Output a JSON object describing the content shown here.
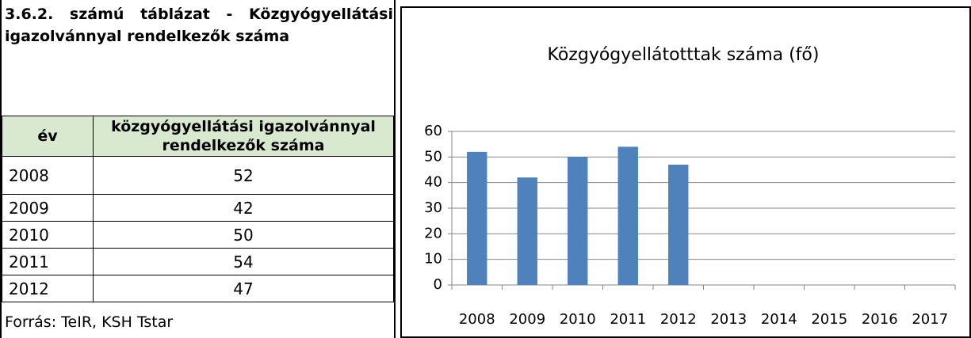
{
  "caption": "3.6.2. számú táblázat - Közgyógyellátási igazolvánnyal rendelkezők száma",
  "table": {
    "header": [
      "év",
      "közgyógyellátási igazolvánnyal rendelkezők száma"
    ],
    "rows": [
      [
        "2008",
        "52"
      ],
      [
        "2009",
        "42"
      ],
      [
        "2010",
        "50"
      ],
      [
        "2011",
        "54"
      ],
      [
        "2012",
        "47"
      ]
    ]
  },
  "source": "Forrás: TeIR, KSH Tstar",
  "chart_data": {
    "type": "bar",
    "title": "Közgyógyellátotttak száma (fő)",
    "categories": [
      "2008",
      "2009",
      "2010",
      "2011",
      "2012",
      "2013",
      "2014",
      "2015",
      "2016",
      "2017"
    ],
    "values": [
      52,
      42,
      50,
      54,
      47,
      null,
      null,
      null,
      null,
      null
    ],
    "color": "#4f81bd",
    "ylim": [
      0,
      60
    ],
    "yticks": [
      0,
      10,
      20,
      30,
      40,
      50,
      60
    ],
    "grid": true
  }
}
